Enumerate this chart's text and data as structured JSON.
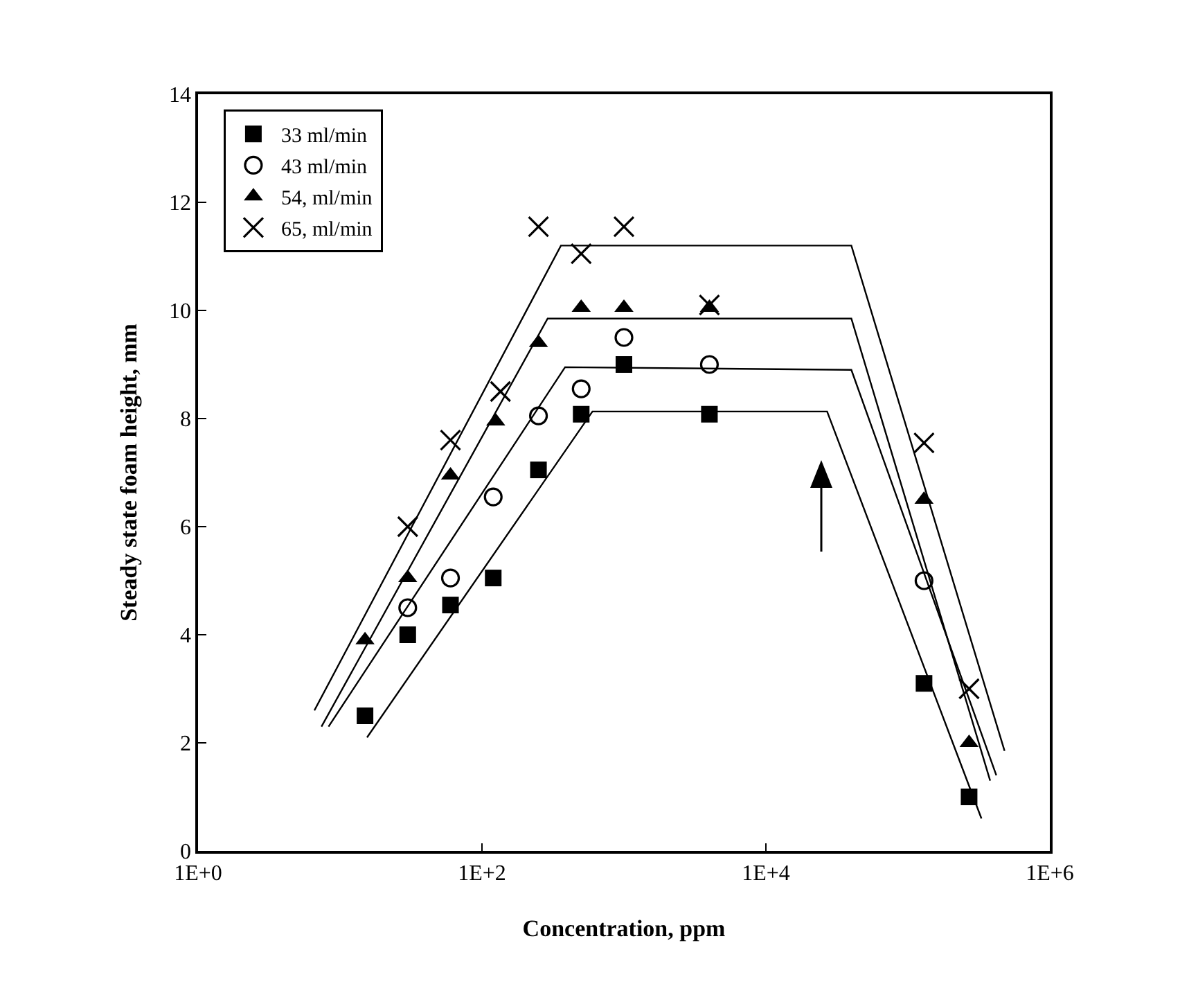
{
  "chart_data": {
    "type": "scatter",
    "xlabel": "Concentration, ppm",
    "ylabel": "Steady state foam height, mm",
    "log": "x",
    "xlim": [
      1,
      1000000
    ],
    "ylim": [
      0,
      14
    ],
    "xticks": [
      {
        "value": 1,
        "label": "1E+0"
      },
      {
        "value": 100,
        "label": "1E+2"
      },
      {
        "value": 10000,
        "label": "1E+4"
      },
      {
        "value": 1000000,
        "label": "1E+6"
      }
    ],
    "yticks": [
      0,
      2,
      4,
      6,
      8,
      10,
      12,
      14
    ],
    "grid": false,
    "legend": "top left",
    "series": [
      {
        "name": "33 ml/min",
        "color": "#000000",
        "marker": "square",
        "x": [
          15,
          30,
          60,
          120,
          250,
          500,
          1000,
          4000,
          130000,
          270000
        ],
        "values": [
          2.5,
          4.0,
          4.55,
          5.05,
          7.05,
          8.08,
          9.0,
          8.08,
          3.1,
          1.0
        ]
      },
      {
        "name": "43 ml/min",
        "color": "#000000",
        "marker": "circle",
        "x": [
          30,
          60,
          120,
          250,
          500,
          1000,
          4000,
          130000
        ],
        "values": [
          4.5,
          5.05,
          6.55,
          8.05,
          8.55,
          9.5,
          9.0,
          5.0
        ]
      },
      {
        "name": "54, ml/min",
        "color": "#000000",
        "marker": "triangle",
        "x": [
          15,
          30,
          60,
          125,
          250,
          500,
          1000,
          4000,
          130000,
          270000
        ],
        "values": [
          3.9,
          5.05,
          6.95,
          7.95,
          9.4,
          10.05,
          10.05,
          10.05,
          6.5,
          2.0
        ]
      },
      {
        "name": "65, ml/min",
        "color": "#000000",
        "marker": "cross",
        "x": [
          30,
          60,
          135,
          250,
          500,
          1000,
          4000,
          130000,
          270000
        ],
        "values": [
          6.0,
          7.6,
          8.5,
          11.55,
          11.05,
          11.55,
          10.1,
          7.55,
          3.0
        ]
      },
      {
        "type": "line",
        "color": "#000000",
        "marker": "none",
        "x": [
          15.5,
          600,
          27000,
          330000
        ],
        "values": [
          2.1,
          8.13,
          8.13,
          0.6
        ]
      },
      {
        "type": "line",
        "color": "#000000",
        "marker": "none",
        "x": [
          8.3,
          385,
          40000,
          420000
        ],
        "values": [
          2.3,
          8.95,
          8.9,
          1.4
        ]
      },
      {
        "type": "line",
        "color": "#000000",
        "marker": "none",
        "x": [
          7.4,
          290,
          40000,
          380000
        ],
        "values": [
          2.3,
          9.85,
          9.85,
          1.3
        ]
      },
      {
        "type": "line",
        "color": "#000000",
        "marker": "none",
        "x": [
          6.6,
          360,
          40000,
          480000
        ],
        "values": [
          2.6,
          11.2,
          11.2,
          1.85
        ]
      }
    ]
  }
}
